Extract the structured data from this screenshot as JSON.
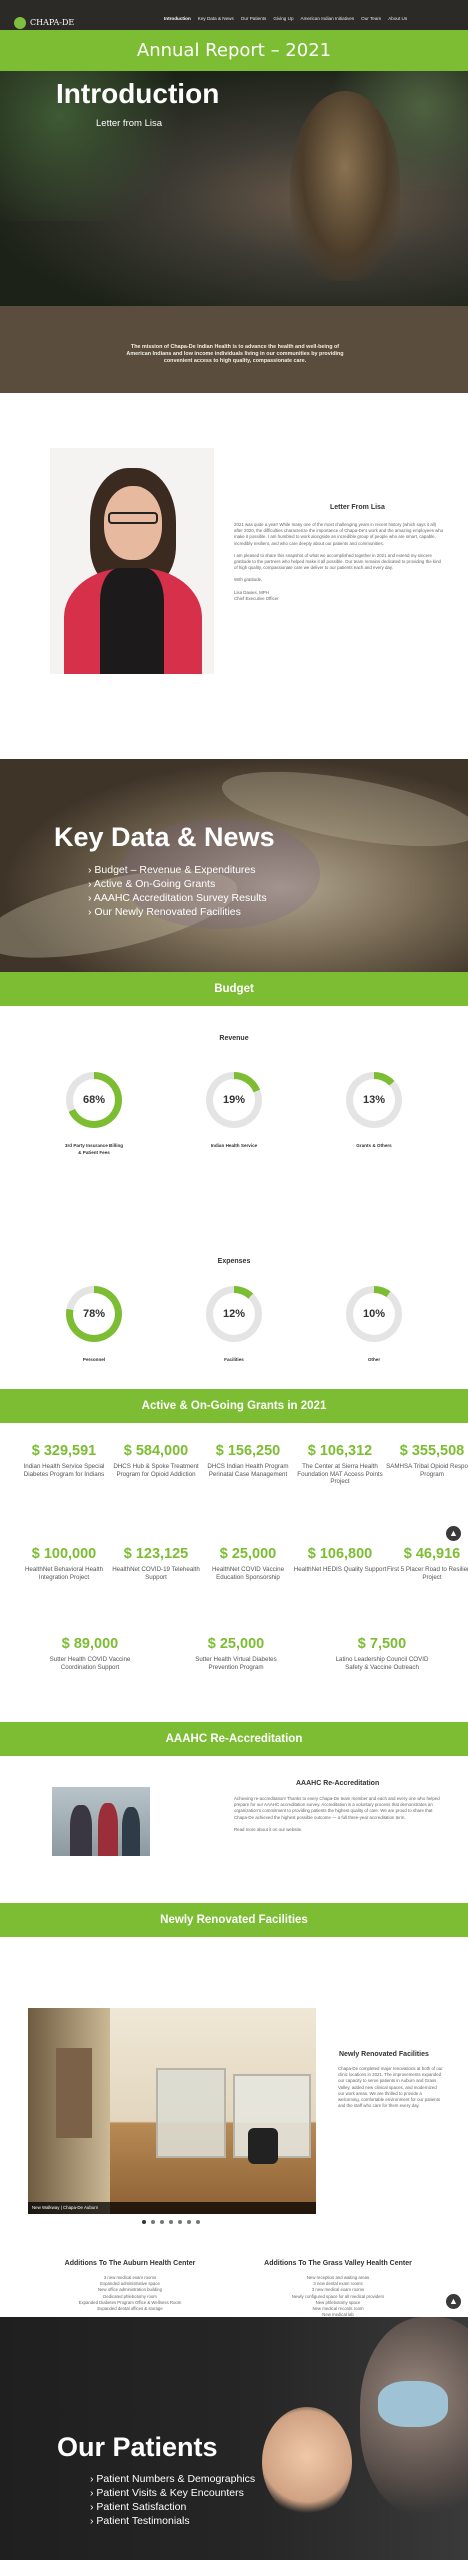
{
  "nav": {
    "logo": "CHAPA-DE",
    "logo_sub": "INDIAN HEALTH",
    "links": [
      "Introduction",
      "Key Data & News",
      "Our Patients",
      "Giving Up",
      "American Indian Initiatives",
      "Our Team",
      "About Us"
    ],
    "active_index": 0
  },
  "page_title": "Annual Report – 2021",
  "intro": {
    "title": "Introduction",
    "subtitle": "Letter from Lisa",
    "mission": "The mission of Chapa-De Indian Health is to advance the health and well-being of American Indians and low income individuals living in our communities by providing convenient access to high quality, compassionate care."
  },
  "letter": {
    "heading": "Letter From Lisa",
    "paragraphs": [
      "2021 was quite a year! While many one of the most challenging years in recent history (which says it all) after 2020, the difficulties characterize the importance of Chapa-De's work and the amazing employees who make it possible. I am humbled to work alongside an incredible group of people who are smart, capable, incredibly resilient, and who care deeply about our patients and communities.",
      "I am pleased to share this snapshot of what we accomplished together in 2021 and extend my sincere gratitude to the partners who helped make it all possible. Our team remains dedicated to providing the kind of high quality, compassionate care we deliver to our patients each and every day.",
      "With gratitude,",
      "Lisa Davies, MPH\nChief Executive Officer"
    ]
  },
  "key_data": {
    "title": "Key Data & News",
    "items": [
      "› Budget – Revenue & Expenditures",
      "› Active & On-Going Grants",
      "› AAAHC Accreditation Survey Results",
      "› Our Newly Renovated Facilities"
    ]
  },
  "budget": {
    "bar_title": "Budget",
    "revenue_title": "Revenue",
    "expenses_title": "Expenses",
    "accent": "#7cbd33",
    "track": "#e4e4e4",
    "revenue": [
      {
        "pct": 68,
        "label": "68%",
        "name": "3rd Party Insurance Billing\n& Patient Fees"
      },
      {
        "pct": 19,
        "label": "19%",
        "name": "Indian Health Service"
      },
      {
        "pct": 13,
        "label": "13%",
        "name": "Grants & Others"
      }
    ],
    "expenses": [
      {
        "pct": 78,
        "label": "78%",
        "name": "Personnel"
      },
      {
        "pct": 12,
        "label": "12%",
        "name": "Facilities"
      },
      {
        "pct": 10,
        "label": "10%",
        "name": "Other"
      }
    ]
  },
  "grants": {
    "bar_title": "Active & On-Going Grants in 2021",
    "rows": [
      [
        {
          "amount": "$ 329,591",
          "desc": "Indian Health Service Special Diabetes Program for Indians"
        },
        {
          "amount": "$ 584,000",
          "desc": "DHCS Hub & Spoke Treatment Program for Opioid Addiction"
        },
        {
          "amount": "$ 156,250",
          "desc": "DHCS Indian Health Program Perinatal Case Management"
        },
        {
          "amount": "$ 106,312",
          "desc": "The Center at Sierra Health Foundation MAT Access Points Project"
        },
        {
          "amount": "$ 355,508",
          "desc": "SAMHSA Tribal Opioid Response Program"
        }
      ],
      [
        {
          "amount": "$ 100,000",
          "desc": "HealthNet Behavioral Health Integration Project"
        },
        {
          "amount": "$ 123,125",
          "desc": "HealthNet COVID-19 Telehealth Support"
        },
        {
          "amount": "$ 25,000",
          "desc": "HealthNet COVID Vaccine Education Sponsorship"
        },
        {
          "amount": "$ 106,800",
          "desc": "HealthNet HEDIS Quality Support"
        },
        {
          "amount": "$ 46,916",
          "desc": "First 5 Placer Road to Resilience Project"
        }
      ],
      [
        {
          "amount": "$ 89,000",
          "desc": "Sutter Health COVID Vaccine Coordination Support"
        },
        {
          "amount": "$ 25,000",
          "desc": "Sutter Health Virtual Diabetes Prevention Program"
        },
        {
          "amount": "$ 7,500",
          "desc": "Latino Leadership Council COVID Safety & Vaccine Outreach"
        }
      ]
    ]
  },
  "aaahc": {
    "bar_title": "AAAHC Re-Accreditation",
    "heading": "AAAHC Re-Accreditation",
    "paragraphs": [
      "Achieving re-accreditation! Thanks to every Chapa-De team member and each and every one who helped prepare for our AAAHC accreditation survey. Accreditation is a voluntary process that demonstrates an organization's commitment to providing patients the highest quality of care. We are proud to share that Chapa-De achieved the highest possible outcome — a full three-year accreditation term.",
      "Read more about it on our website."
    ]
  },
  "facilities": {
    "bar_title": "Newly Renovated Facilities",
    "heading": "Newly Renovated Facilities",
    "body": "Chapa-De completed major renovations at both of our clinic locations in 2021. The improvements expanded our capacity to serve patients in Auburn and Grass Valley, added new clinical spaces, and modernized our work areas. We are thrilled to provide a welcoming, comfortable environment for our patients and the staff who care for them every day.",
    "caption": "New Walkway | Chapa-De Auburn",
    "slide_count": 7,
    "active_slide": 0,
    "auburn": {
      "title": "Additions To The Auburn Health Center",
      "items": [
        "3 new medical exam rooms",
        "Expanded administrative space",
        "New office administration building",
        "Dedicated phlebotomy room",
        "Expanded Diabetes Program Office & Wellness Room",
        "Expanded dental offices & storage"
      ]
    },
    "grass_valley": {
      "title": "Additions To The Grass Valley Health Center",
      "items": [
        "New reception and waiting areas",
        "3 new dental exam rooms",
        "3 new medical exam rooms",
        "Newly configured space for all medical providers",
        "New phlebotomy space",
        "New medical records room",
        "New medical lab",
        "Dedicated Pediatric space with new offices and group room"
      ]
    }
  },
  "patients": {
    "title": "Our Patients",
    "items": [
      "› Patient Numbers & Demographics",
      "› Patient Visits & Key Encounters",
      "› Patient Satisfaction",
      "› Patient Testimonials"
    ]
  }
}
